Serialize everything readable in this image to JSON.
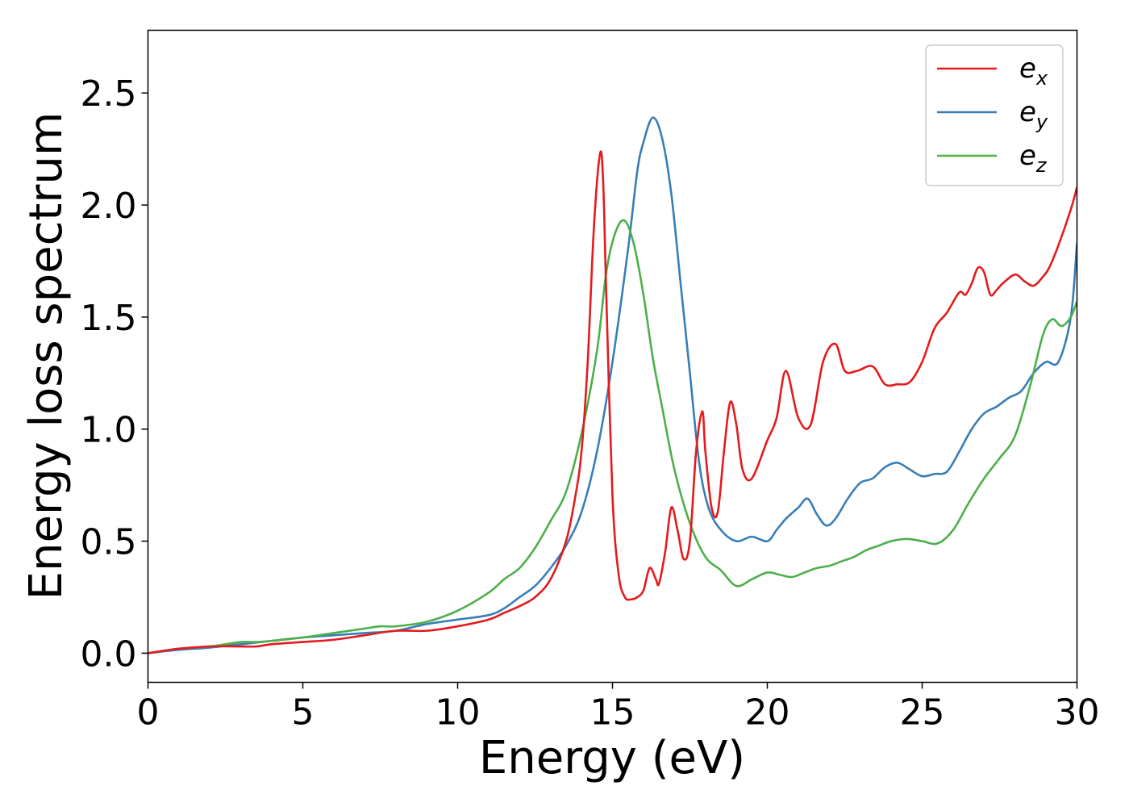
{
  "chart_data": {
    "type": "line",
    "title": "",
    "xlabel": "Energy (eV)",
    "ylabel": "Energy loss spectrum",
    "xlim": [
      0,
      30
    ],
    "ylim": [
      -0.13,
      2.78
    ],
    "xticks": [
      0,
      5,
      10,
      15,
      20,
      25,
      30
    ],
    "xtick_labels": [
      "0",
      "5",
      "10",
      "15",
      "20",
      "25",
      "30"
    ],
    "yticks": [
      0.0,
      0.5,
      1.0,
      1.5,
      2.0,
      2.5
    ],
    "ytick_labels": [
      "0.0",
      "0.5",
      "1.0",
      "1.5",
      "2.0",
      "2.5"
    ],
    "grid": false,
    "legend_position": "top-right",
    "series": [
      {
        "name": "e_x",
        "legend_base": "e",
        "legend_sub": "x",
        "color": "#e41a1c",
        "x": [
          0,
          1,
          2,
          3,
          3.5,
          4,
          5,
          6,
          7,
          8,
          9,
          10,
          11,
          11.5,
          12,
          12.5,
          13,
          13.5,
          13.8,
          14,
          14.2,
          14.4,
          14.6,
          14.7,
          14.8,
          15,
          15.2,
          15.4,
          15.6,
          15.8,
          16,
          16.2,
          16.4,
          16.5,
          16.7,
          16.9,
          17.1,
          17.3,
          17.5,
          17.7,
          17.9,
          18.0,
          18.2,
          18.4,
          18.6,
          18.8,
          19.0,
          19.2,
          19.5,
          20,
          20.3,
          20.6,
          21,
          21.4,
          21.8,
          22.2,
          22.5,
          22.9,
          23.4,
          23.8,
          24.2,
          24.6,
          25,
          25.4,
          25.8,
          26.2,
          26.4,
          26.6,
          26.8,
          27,
          27.2,
          27.4,
          27.6,
          28,
          28.3,
          28.6,
          28.9,
          29.1,
          29.4,
          29.8,
          30
        ],
        "y": [
          0,
          0.02,
          0.03,
          0.03,
          0.03,
          0.04,
          0.05,
          0.06,
          0.08,
          0.1,
          0.1,
          0.12,
          0.15,
          0.18,
          0.21,
          0.25,
          0.33,
          0.5,
          0.7,
          0.9,
          1.3,
          1.9,
          2.23,
          2.1,
          1.6,
          0.7,
          0.35,
          0.25,
          0.24,
          0.25,
          0.28,
          0.38,
          0.33,
          0.31,
          0.45,
          0.65,
          0.55,
          0.42,
          0.5,
          0.9,
          1.08,
          0.9,
          0.65,
          0.63,
          0.9,
          1.12,
          1.02,
          0.82,
          0.78,
          0.95,
          1.05,
          1.26,
          1.05,
          1.02,
          1.3,
          1.38,
          1.26,
          1.26,
          1.28,
          1.2,
          1.2,
          1.21,
          1.3,
          1.45,
          1.52,
          1.61,
          1.6,
          1.65,
          1.72,
          1.7,
          1.6,
          1.62,
          1.65,
          1.69,
          1.66,
          1.64,
          1.68,
          1.72,
          1.82,
          1.98,
          2.08
        ]
      },
      {
        "name": "e_y",
        "legend_base": "e",
        "legend_sub": "y",
        "color": "#377eb8",
        "x": [
          0,
          1,
          2,
          3,
          4,
          5,
          6,
          7,
          8,
          9,
          10,
          11,
          11.5,
          12,
          12.5,
          13,
          13.5,
          14,
          14.5,
          15,
          15.5,
          15.8,
          16,
          16.3,
          16.6,
          16.9,
          17.2,
          17.5,
          17.8,
          18.1,
          18.5,
          19,
          19.5,
          20,
          20.3,
          20.6,
          21,
          21.3,
          21.6,
          21.9,
          22.2,
          22.6,
          23,
          23.4,
          23.8,
          24.2,
          24.6,
          25,
          25.4,
          25.8,
          26.2,
          26.6,
          27,
          27.4,
          27.8,
          28.2,
          28.6,
          29,
          29.4,
          29.8,
          30
        ],
        "y": [
          0,
          0.015,
          0.025,
          0.04,
          0.055,
          0.07,
          0.08,
          0.09,
          0.1,
          0.13,
          0.15,
          0.17,
          0.2,
          0.25,
          0.3,
          0.38,
          0.48,
          0.63,
          0.9,
          1.3,
          1.8,
          2.15,
          2.28,
          2.39,
          2.3,
          2.05,
          1.65,
          1.25,
          0.85,
          0.65,
          0.55,
          0.5,
          0.52,
          0.5,
          0.55,
          0.6,
          0.65,
          0.69,
          0.62,
          0.57,
          0.6,
          0.69,
          0.76,
          0.78,
          0.83,
          0.85,
          0.82,
          0.79,
          0.8,
          0.81,
          0.9,
          1.0,
          1.07,
          1.1,
          1.14,
          1.17,
          1.25,
          1.3,
          1.3,
          1.5,
          1.83
        ]
      },
      {
        "name": "e_z",
        "legend_base": "e",
        "legend_sub": "z",
        "color": "#4daf4a",
        "x": [
          0,
          1,
          2,
          2.5,
          3,
          3.5,
          4,
          5,
          6,
          7,
          7.5,
          8,
          9,
          10,
          11,
          11.5,
          12,
          12.5,
          13,
          13.5,
          14,
          14.5,
          14.8,
          15.1,
          15.4,
          15.7,
          16,
          16.3,
          16.6,
          17,
          17.5,
          18,
          18.5,
          19,
          19.5,
          20,
          20.4,
          20.8,
          21.2,
          21.6,
          22,
          22.4,
          22.8,
          23.2,
          23.6,
          24,
          24.5,
          25,
          25.5,
          26,
          26.5,
          27,
          27.5,
          28,
          28.5,
          28.9,
          29.2,
          29.5,
          29.8,
          30
        ],
        "y": [
          0,
          0.02,
          0.03,
          0.04,
          0.05,
          0.05,
          0.055,
          0.07,
          0.09,
          0.11,
          0.12,
          0.12,
          0.14,
          0.19,
          0.27,
          0.33,
          0.38,
          0.47,
          0.59,
          0.72,
          0.98,
          1.35,
          1.7,
          1.88,
          1.93,
          1.82,
          1.6,
          1.32,
          1.1,
          0.82,
          0.58,
          0.43,
          0.37,
          0.3,
          0.33,
          0.36,
          0.35,
          0.34,
          0.36,
          0.38,
          0.39,
          0.41,
          0.43,
          0.46,
          0.48,
          0.5,
          0.51,
          0.5,
          0.49,
          0.55,
          0.67,
          0.78,
          0.87,
          0.97,
          1.2,
          1.42,
          1.49,
          1.46,
          1.5,
          1.57
        ]
      }
    ]
  }
}
